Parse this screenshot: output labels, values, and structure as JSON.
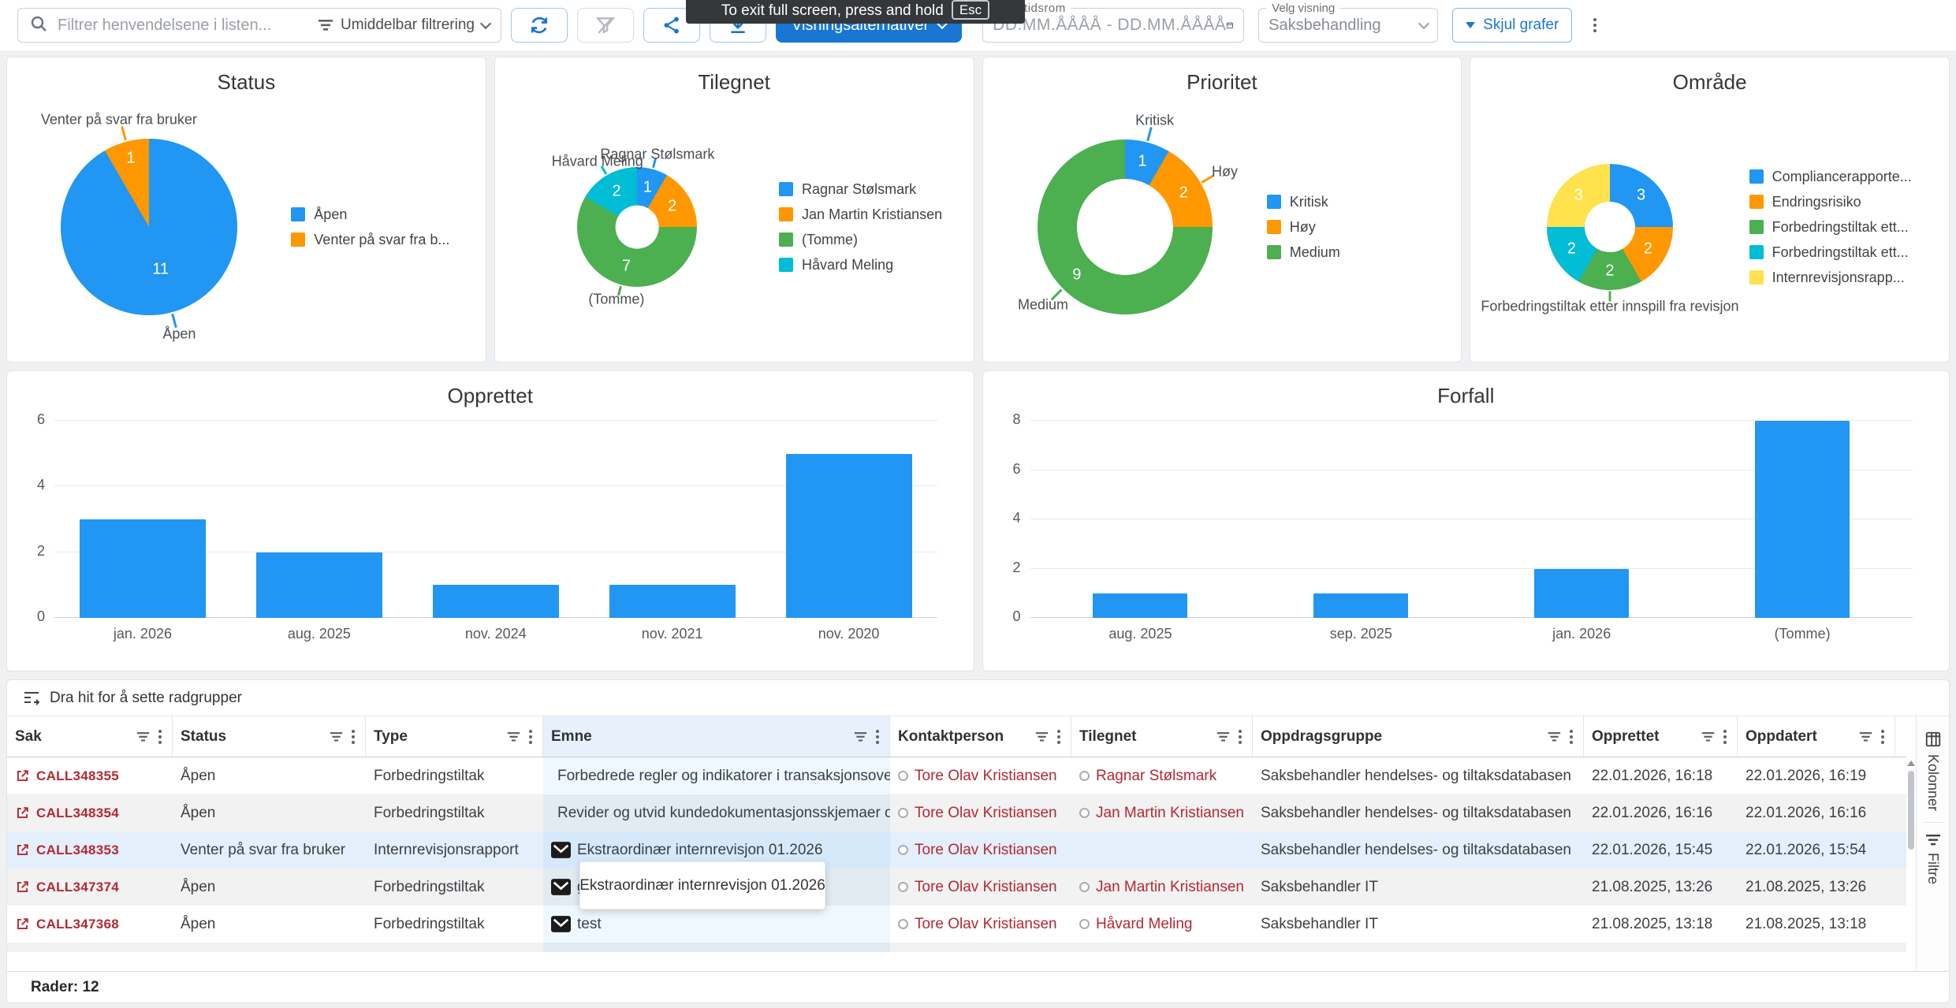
{
  "toolbar": {
    "search_placeholder": "Filtrer henvendelsene i listen...",
    "instant_filter_label": "Umiddelbar filtrering",
    "view_options_label": "Visningsalternativer",
    "date_range_label": "Velg tidsrom",
    "date_range_placeholder": "DD.MM.ÅÅÅÅ - DD.MM.ÅÅÅÅ",
    "view_select_label": "Velg visning",
    "view_select_value": "Saksbehandling",
    "hide_charts_label": "Skjul grafer"
  },
  "fullscreen_tooltip": {
    "text": "To exit full screen, press and hold",
    "key_label": "Esc"
  },
  "chart_data": [
    {
      "type": "pie",
      "title": "Status",
      "slices": [
        {
          "label": "Åpen",
          "value": 11,
          "color": "#2196F3",
          "callout": "Åpen"
        },
        {
          "label": "Venter på svar fra bruker",
          "value": 1,
          "color": "#FF9800",
          "callout": "Venter på svar fra bruker"
        }
      ],
      "legend": [
        "Åpen",
        "Venter på svar fra b..."
      ]
    },
    {
      "type": "pie",
      "title": "Tilegnet",
      "slices": [
        {
          "label": "Ragnar Stølsmark",
          "value": 1,
          "color": "#2196F3",
          "callout": "Ragnar Stølsmark"
        },
        {
          "label": "Jan Martin Kristiansen",
          "value": 2,
          "color": "#FF9800",
          "callout": null
        },
        {
          "label": "(Tomme)",
          "value": 7,
          "color": "#4CAF50",
          "callout": "(Tomme)"
        },
        {
          "label": "Håvard Meling",
          "value": 2,
          "color": "#00BCD4",
          "callout": "Håvard Meling"
        }
      ],
      "legend": [
        "Ragnar Stølsmark",
        "Jan Martin Kristiansen",
        "(Tomme)",
        "Håvard Meling"
      ]
    },
    {
      "type": "pie",
      "title": "Prioritet",
      "slices": [
        {
          "label": "Kritisk",
          "value": 1,
          "color": "#2196F3",
          "callout": "Kritisk"
        },
        {
          "label": "Høy",
          "value": 2,
          "color": "#FF9800",
          "callout": "Høy"
        },
        {
          "label": "Medium",
          "value": 9,
          "color": "#4CAF50",
          "callout": "Medium"
        }
      ],
      "legend": [
        "Kritisk",
        "Høy",
        "Medium"
      ]
    },
    {
      "type": "pie",
      "title": "Område",
      "slices": [
        {
          "label": "Compliancerapporte...",
          "value": 3,
          "color": "#2196F3",
          "callout": null
        },
        {
          "label": "Endringsrisiko",
          "value": 2,
          "color": "#FF9800",
          "callout": null
        },
        {
          "label": "Forbedringstiltak etter innspill fra revisjon",
          "value": 2,
          "color": "#4CAF50",
          "callout": "Forbedringstiltak etter innspill fra revisjon"
        },
        {
          "label": "Forbedringstiltak ett...",
          "value": 2,
          "color": "#00BCD4",
          "callout": null
        },
        {
          "label": "Internrevisjonsrapp...",
          "value": 3,
          "color": "#FFE24D",
          "callout": null
        }
      ],
      "legend": [
        "Compliancerapporte...",
        "Endringsrisiko",
        "Forbedringstiltak ett...",
        "Forbedringstiltak ett...",
        "Internrevisjonsrapp..."
      ]
    },
    {
      "type": "bar",
      "title": "Opprettet",
      "categories": [
        "jan. 2026",
        "aug. 2025",
        "nov. 2024",
        "nov. 2021",
        "nov. 2020"
      ],
      "values": [
        3,
        2,
        1,
        1,
        5
      ],
      "yticks": [
        0,
        2,
        4,
        6
      ],
      "color": "#2196F3"
    },
    {
      "type": "bar",
      "title": "Forfall",
      "categories": [
        "aug. 2025",
        "sep. 2025",
        "jan. 2026",
        "(Tomme)"
      ],
      "values": [
        1,
        1,
        2,
        8
      ],
      "yticks": [
        0,
        2,
        4,
        6,
        8
      ],
      "color": "#2196F3"
    }
  ],
  "table": {
    "group_hint": "Dra hit for å sette radgrupper",
    "columns": [
      "Sak",
      "Status",
      "Type",
      "Emne",
      "Kontaktperson",
      "Tilegnet",
      "Oppdragsgruppe",
      "Opprettet",
      "Oppdatert"
    ],
    "highlighted_row": 2,
    "rows": [
      {
        "sak": "CALL348355",
        "status": "Åpen",
        "type": "Forbedringstiltak",
        "emne": "Forbedrede regler og indikatorer i transaksjonsove",
        "kontaktperson": "Tore Olav Kristiansen",
        "tilegnet": "Ragnar Stølsmark",
        "oppdragsgruppe": "Saksbehandler hendelses- og tiltaksdatabasen",
        "opprettet": "22.01.2026, 16:18",
        "oppdatert": "22.01.2026, 16:19"
      },
      {
        "sak": "CALL348354",
        "status": "Åpen",
        "type": "Forbedringstiltak",
        "emne": "Revider og utvid kundedokumentasjonsskjemaer o",
        "kontaktperson": "Tore Olav Kristiansen",
        "tilegnet": "Jan Martin Kristiansen",
        "oppdragsgruppe": "Saksbehandler hendelses- og tiltaksdatabasen",
        "opprettet": "22.01.2026, 16:16",
        "oppdatert": "22.01.2026, 16:16"
      },
      {
        "sak": "CALL348353",
        "status": "Venter på svar fra bruker",
        "type": "Internrevisjonsrapport",
        "emne": "Ekstraordinær internrevisjon 01.2026",
        "kontaktperson": "Tore Olav Kristiansen",
        "tilegnet": "",
        "oppdragsgruppe": "Saksbehandler hendelses- og tiltaksdatabasen",
        "opprettet": "22.01.2026, 15:45",
        "oppdatert": "22.01.2026, 15:54"
      },
      {
        "sak": "CALL347374",
        "status": "Åpen",
        "type": "Forbedringstiltak",
        "emne": "g",
        "kontaktperson": "Tore Olav Kristiansen",
        "tilegnet": "Jan Martin Kristiansen",
        "oppdragsgruppe": "Saksbehandler IT",
        "opprettet": "21.08.2025, 13:26",
        "oppdatert": "21.08.2025, 13:26"
      },
      {
        "sak": "CALL347368",
        "status": "Åpen",
        "type": "Forbedringstiltak",
        "emne": "test",
        "kontaktperson": "Tore Olav Kristiansen",
        "tilegnet": "Håvard Meling",
        "oppdragsgruppe": "Saksbehandler IT",
        "opprettet": "21.08.2025, 13:18",
        "oppdatert": "21.08.2025, 13:18"
      }
    ],
    "cell_tooltip": "Ekstraordinær internrevisjon 01.2026"
  },
  "side_rail": {
    "tabs": [
      "Kolonner",
      "Filtre"
    ]
  },
  "status_bar": {
    "rows_label": "Rader: 12"
  }
}
